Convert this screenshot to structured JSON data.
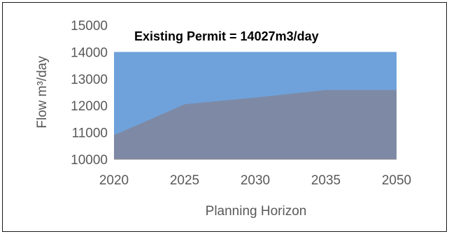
{
  "chart_data": {
    "type": "area",
    "x": [
      "2020",
      "2025",
      "2030",
      "2035",
      "2050"
    ],
    "series": [
      {
        "values": [
          14000,
          14000,
          14000,
          14000,
          14000
        ],
        "color": "#6fa2db"
      },
      {
        "values": [
          10900,
          12050,
          12300,
          12580,
          12580
        ],
        "color": "#7e8aa5"
      }
    ],
    "ylim": [
      10000,
      15000
    ],
    "yticks": [
      "10000",
      "11000",
      "12000",
      "13000",
      "14000",
      "15000"
    ],
    "xlabel": "Planning Horizon",
    "ylabel": "Flow m³/day",
    "annotation": "Existing  Permit = 14027m3/day",
    "grid": false
  }
}
